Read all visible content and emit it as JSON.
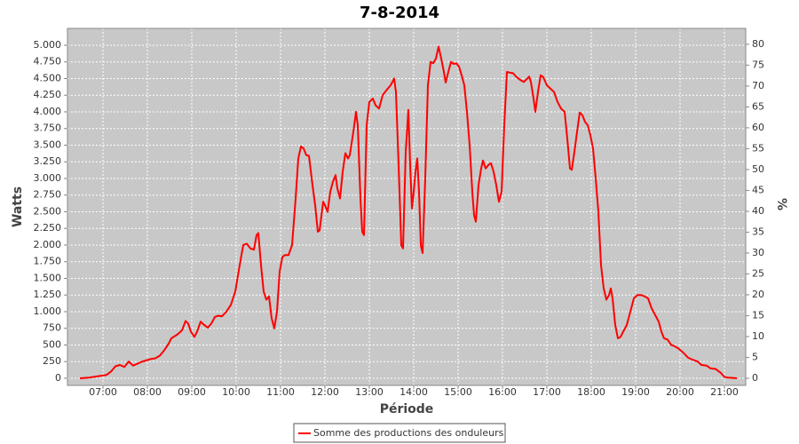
{
  "chart_data": {
    "type": "line",
    "title": "7-8-2014",
    "x_label": "Période",
    "y_label": "Watts",
    "y2_label": "%",
    "grid": true,
    "legend": "bottom",
    "xlim": [
      6.2,
      21.48
    ],
    "xticks": [
      {
        "value": 7,
        "label": "07:00"
      },
      {
        "value": 8,
        "label": "08:00"
      },
      {
        "value": 9,
        "label": "09:00"
      },
      {
        "value": 10,
        "label": "10:00"
      },
      {
        "value": 11,
        "label": "11:00"
      },
      {
        "value": 12,
        "label": "12:00"
      },
      {
        "value": 13,
        "label": "13:00"
      },
      {
        "value": 14,
        "label": "14:00"
      },
      {
        "value": 15,
        "label": "15:00"
      },
      {
        "value": 16,
        "label": "16:00"
      },
      {
        "value": 17,
        "label": "17:00"
      },
      {
        "value": 18,
        "label": "18:00"
      },
      {
        "value": 19,
        "label": "19:00"
      },
      {
        "value": 20,
        "label": "20:00"
      },
      {
        "value": 21,
        "label": "21:00"
      }
    ],
    "ylim": [
      -107,
      5253
    ],
    "yticks": [
      0,
      250,
      500,
      750,
      {
        "value": 1000,
        "label": "1.000"
      },
      {
        "value": 1250,
        "label": "1.250"
      },
      {
        "value": 1500,
        "label": "1.500"
      },
      {
        "value": 1750,
        "label": "1.750"
      },
      {
        "value": 2000,
        "label": "2.000"
      },
      {
        "value": 2250,
        "label": "2.250"
      },
      {
        "value": 2500,
        "label": "2.500"
      },
      {
        "value": 2750,
        "label": "2.750"
      },
      {
        "value": 3000,
        "label": "3.000"
      },
      {
        "value": 3250,
        "label": "3.250"
      },
      {
        "value": 3500,
        "label": "3.500"
      },
      {
        "value": 3750,
        "label": "3.750"
      },
      {
        "value": 4000,
        "label": "4.000"
      },
      {
        "value": 4250,
        "label": "4.250"
      },
      {
        "value": 4500,
        "label": "4.500"
      },
      {
        "value": 4750,
        "label": "4.750"
      },
      {
        "value": 5000,
        "label": "5.000"
      }
    ],
    "y2lim": [
      -1.7,
      83.8
    ],
    "y2ticks": [
      0,
      5,
      10,
      15,
      20,
      25,
      30,
      35,
      40,
      45,
      50,
      55,
      60,
      65,
      70,
      75,
      80
    ],
    "x": [
      6.48,
      6.68,
      6.88,
      7.08,
      7.18,
      7.28,
      7.38,
      7.48,
      7.58,
      7.68,
      7.78,
      7.88,
      7.98,
      8.08,
      8.18,
      8.28,
      8.38,
      8.48,
      8.54,
      8.68,
      8.78,
      8.86,
      8.92,
      8.98,
      9.06,
      9.12,
      9.2,
      9.28,
      9.36,
      9.44,
      9.52,
      9.6,
      9.68,
      9.78,
      9.88,
      9.98,
      10.08,
      10.16,
      10.24,
      10.32,
      10.4,
      10.46,
      10.5,
      10.56,
      10.62,
      10.68,
      10.74,
      10.8,
      10.86,
      10.92,
      10.98,
      11.04,
      11.1,
      11.18,
      11.26,
      11.34,
      11.4,
      11.46,
      11.52,
      11.58,
      11.64,
      11.72,
      11.78,
      11.84,
      11.88,
      11.96,
      12,
      12.06,
      12.12,
      12.18,
      12.24,
      12.28,
      12.34,
      12.4,
      12.46,
      12.52,
      12.56,
      12.64,
      12.7,
      12.74,
      12.8,
      12.84,
      12.88,
      12.94,
      13,
      13.08,
      13.14,
      13.22,
      13.3,
      13.38,
      13.48,
      13.56,
      13.6,
      13.66,
      13.72,
      13.76,
      13.82,
      13.88,
      13.92,
      13.96,
      14,
      14.04,
      14.08,
      14.12,
      14.16,
      14.2,
      14.26,
      14.32,
      14.38,
      14.44,
      14.5,
      14.56,
      14.62,
      14.68,
      14.72,
      14.78,
      14.84,
      14.9,
      14.96,
      15.02,
      15.08,
      15.14,
      15.2,
      15.26,
      15.32,
      15.36,
      15.4,
      15.46,
      15.52,
      15.56,
      15.62,
      15.68,
      15.74,
      15.8,
      15.86,
      15.92,
      15.98,
      16.04,
      16.1,
      16.16,
      16.24,
      16.32,
      16.4,
      16.48,
      16.56,
      16.6,
      16.64,
      16.7,
      16.74,
      16.8,
      16.86,
      16.92,
      17,
      17.08,
      17.16,
      17.24,
      17.32,
      17.4,
      17.46,
      17.52,
      17.56,
      17.62,
      17.68,
      17.74,
      17.8,
      17.86,
      17.92,
      17.98,
      18.04,
      18.1,
      18.16,
      18.22,
      18.28,
      18.34,
      18.4,
      18.44,
      18.48,
      18.54,
      18.6,
      18.66,
      18.72,
      18.8,
      18.88,
      18.96,
      19.04,
      19.12,
      19.2,
      19.28,
      19.36,
      19.44,
      19.52,
      19.58,
      19.64,
      19.72,
      19.8,
      19.88,
      19.96,
      20.08,
      20.18,
      20.28,
      20.4,
      20.48,
      20.6,
      20.68,
      20.8,
      20.92,
      21,
      21.08,
      21.2,
      21.28
    ],
    "series": [
      {
        "name": "Somme des productions des onduleurs",
        "color": "#ff0000",
        "values": [
          0,
          10,
          30,
          50,
          100,
          180,
          200,
          170,
          250,
          190,
          220,
          250,
          270,
          290,
          300,
          340,
          420,
          520,
          600,
          660,
          720,
          860,
          820,
          700,
          620,
          700,
          850,
          800,
          760,
          820,
          920,
          940,
          930,
          1000,
          1100,
          1300,
          1700,
          2000,
          2020,
          1950,
          1930,
          2150,
          2180,
          1700,
          1300,
          1180,
          1230,
          900,
          750,
          1000,
          1600,
          1820,
          1850,
          1850,
          2000,
          2700,
          3300,
          3480,
          3450,
          3350,
          3340,
          2900,
          2600,
          2200,
          2220,
          2650,
          2600,
          2500,
          2800,
          2950,
          3050,
          2850,
          2700,
          3100,
          3380,
          3300,
          3350,
          3700,
          4000,
          3800,
          2700,
          2200,
          2150,
          3800,
          4150,
          4200,
          4100,
          4050,
          4250,
          4320,
          4400,
          4500,
          4300,
          3200,
          2000,
          1950,
          3400,
          4030,
          3200,
          2550,
          2800,
          3100,
          3300,
          2800,
          2000,
          1880,
          3000,
          4400,
          4750,
          4730,
          4800,
          4980,
          4800,
          4600,
          4440,
          4600,
          4750,
          4720,
          4730,
          4680,
          4550,
          4400,
          4000,
          3500,
          2800,
          2450,
          2350,
          2900,
          3150,
          3270,
          3150,
          3200,
          3230,
          3100,
          2900,
          2650,
          2800,
          3800,
          4600,
          4590,
          4580,
          4520,
          4480,
          4450,
          4500,
          4530,
          4450,
          4200,
          4000,
          4300,
          4550,
          4520,
          4400,
          4350,
          4300,
          4150,
          4050,
          4000,
          3600,
          3150,
          3130,
          3400,
          3700,
          3990,
          3950,
          3850,
          3800,
          3650,
          3450,
          3000,
          2500,
          1700,
          1350,
          1180,
          1250,
          1350,
          1200,
          800,
          600,
          620,
          700,
          800,
          1000,
          1200,
          1250,
          1250,
          1230,
          1200,
          1050,
          950,
          850,
          700,
          600,
          580,
          500,
          480,
          450,
          380,
          310,
          280,
          250,
          200,
          190,
          150,
          140,
          80,
          20,
          10,
          5,
          0
        ]
      }
    ]
  }
}
